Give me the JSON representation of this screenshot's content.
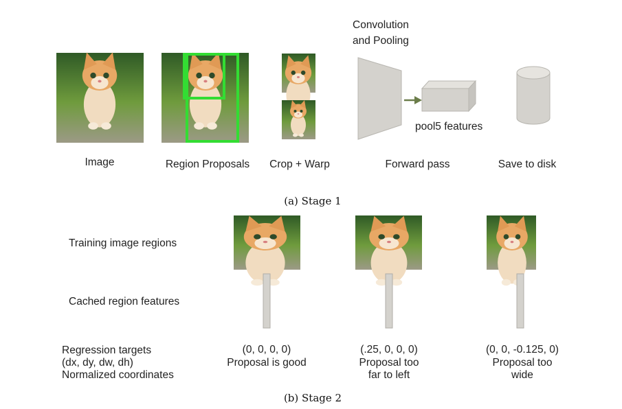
{
  "stage1": {
    "image_label": "Image",
    "proposals_label": "Region Proposals",
    "crop_label": "Crop + Warp",
    "conv_label_line1": "Convolution",
    "conv_label_line2": "and Pooling",
    "pool_label": "pool5 features",
    "forward_label": "Forward pass",
    "save_label": "Save to disk",
    "caption": "(a) Stage 1"
  },
  "stage2": {
    "row1": "Training image regions",
    "row2": "Cached region features",
    "row3_line1": "Regression targets",
    "row3_line2": "(dx, dy, dw, dh)",
    "row3_line3": "Normalized coordinates",
    "examples": [
      {
        "target": "(0, 0, 0, 0)",
        "desc_line1": "Proposal is good",
        "desc_line2": ""
      },
      {
        "target": "(.25, 0, 0, 0)",
        "desc_line1": "Proposal too",
        "desc_line2": "far to left"
      },
      {
        "target": "(0, 0, -0.125, 0)",
        "desc_line1": "Proposal too",
        "desc_line2": "wide"
      }
    ],
    "caption": "(b) Stage 2"
  },
  "colors": {
    "box_green": "#33dd33",
    "grass": "#5a8a3a",
    "cat": "#e8a865",
    "shape_gray": "#d4d2cd",
    "arrow": "#6b7d4a"
  }
}
